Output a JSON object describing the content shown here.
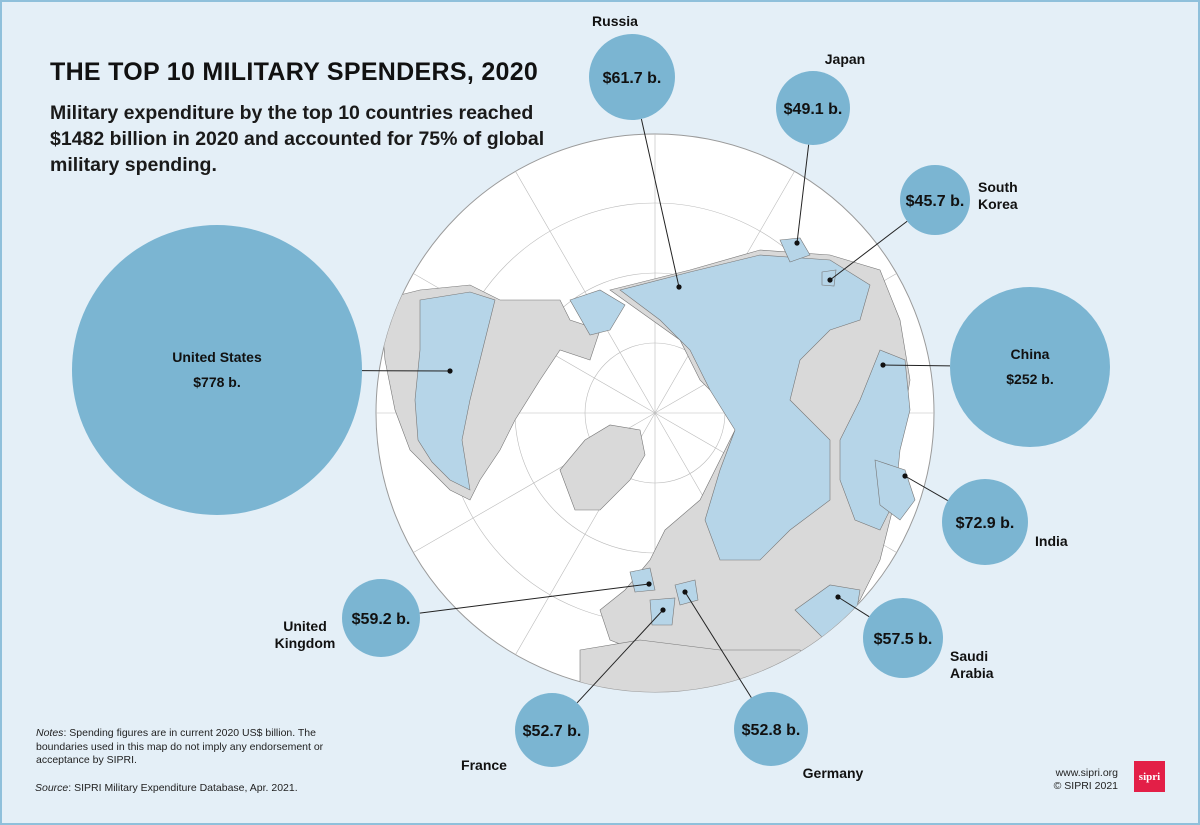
{
  "title": "THE TOP 10 MILITARY SPENDERS, 2020",
  "subtitle": "Military expenditure by the top 10 countries reached $1482 billion in 2020 and accounted for 75% of global military spending.",
  "notes": {
    "label": "Notes",
    "text": ": Spending figures are in current 2020 US$ billion. The boundaries used in this map do not imply any endorsement or acceptance by SIPRI."
  },
  "source": {
    "label": "Source",
    "text": ": SIPRI Military Expenditure Database, Apr. 2021."
  },
  "credits": {
    "url": "www.sipri.org",
    "copyright": "© SIPRI 2021"
  },
  "logo": "sipri",
  "colors": {
    "bubble": "#7bb5d2",
    "highlight": "#b6d5e8",
    "land": "#d9d9d9",
    "ocean": "#ffffff",
    "background": "#e4eff7",
    "logo": "#e31f47"
  },
  "countries": [
    {
      "name": [
        "United States"
      ],
      "value": "$778 b.",
      "billions": 778
    },
    {
      "name": [
        "China"
      ],
      "value": "$252 b.",
      "billions": 252
    },
    {
      "name": [
        "India"
      ],
      "value": "$72.9 b.",
      "billions": 72.9
    },
    {
      "name": [
        "Russia"
      ],
      "value": "$61.7 b.",
      "billions": 61.7
    },
    {
      "name": [
        "United",
        "Kingdom"
      ],
      "value": "$59.2 b.",
      "billions": 59.2
    },
    {
      "name": [
        "Saudi",
        "Arabia"
      ],
      "value": "$57.5 b.",
      "billions": 57.5
    },
    {
      "name": [
        "Germany"
      ],
      "value": "$52.8 b.",
      "billions": 52.8
    },
    {
      "name": [
        "France"
      ],
      "value": "$52.7 b.",
      "billions": 52.7
    },
    {
      "name": [
        "Japan"
      ],
      "value": "$49.1 b.",
      "billions": 49.1
    },
    {
      "name": [
        "South",
        "Korea"
      ],
      "value": "$45.7 b.",
      "billions": 45.7
    }
  ]
}
